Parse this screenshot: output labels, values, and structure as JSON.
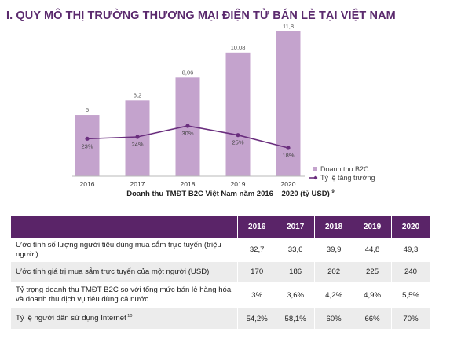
{
  "heading": "I. QUY MÔ THỊ TRƯỜNG THƯƠNG MẠI ĐIỆN TỬ BÁN LẺ TẠI VIỆT NAM",
  "colors": {
    "bar": "#c4a3cd",
    "line": "#6a2e7e",
    "header_bg": "#5a2468",
    "heading": "#5b2a6e",
    "row_alt": "#ececec"
  },
  "chart_data": {
    "type": "bar",
    "categories": [
      "2016",
      "2017",
      "2018",
      "2019",
      "2020"
    ],
    "series": [
      {
        "name": "Doanh thu B2C",
        "type": "bar",
        "values": [
          5,
          6.2,
          8.06,
          10.08,
          11.8
        ],
        "labels": [
          "5",
          "6,2",
          "8,06",
          "10,08",
          "11,8"
        ]
      },
      {
        "name": "Tỷ lệ tăng trưởng",
        "type": "line",
        "values": [
          23,
          24,
          30,
          25,
          18
        ],
        "labels": [
          "23%",
          "24%",
          "30%",
          "25%",
          "18%"
        ]
      }
    ],
    "title": "Doanh thu TMĐT B2C Việt Nam năm 2016 – 2020 (tỷ USD)",
    "title_sup": "9",
    "ylim": [
      0,
      11.8
    ],
    "legend_position": "right",
    "grid": false
  },
  "table": {
    "headers": [
      "",
      "2016",
      "2017",
      "2018",
      "2019",
      "2020"
    ],
    "rows": [
      {
        "label": "Ước tính số lượng người tiêu dùng mua sắm trực tuyến (triệu người)",
        "sup": "",
        "values": [
          "32,7",
          "33,6",
          "39,9",
          "44,8",
          "49,3"
        ]
      },
      {
        "label": "Ước tính giá trị mua sắm trực tuyến của một người (USD)",
        "sup": "",
        "values": [
          "170",
          "186",
          "202",
          "225",
          "240"
        ]
      },
      {
        "label": "Tỷ trọng doanh thu TMĐT B2C so với tổng mức bán lẻ hàng hóa và doanh thu dịch vụ tiêu dùng cả nước",
        "sup": "",
        "values": [
          "3%",
          "3,6%",
          "4,2%",
          "4,9%",
          "5,5%"
        ]
      },
      {
        "label": "Tỷ lệ người dân sử dụng Internet",
        "sup": "10",
        "values": [
          "54,2%",
          "58,1%",
          "60%",
          "66%",
          "70%"
        ]
      }
    ]
  }
}
